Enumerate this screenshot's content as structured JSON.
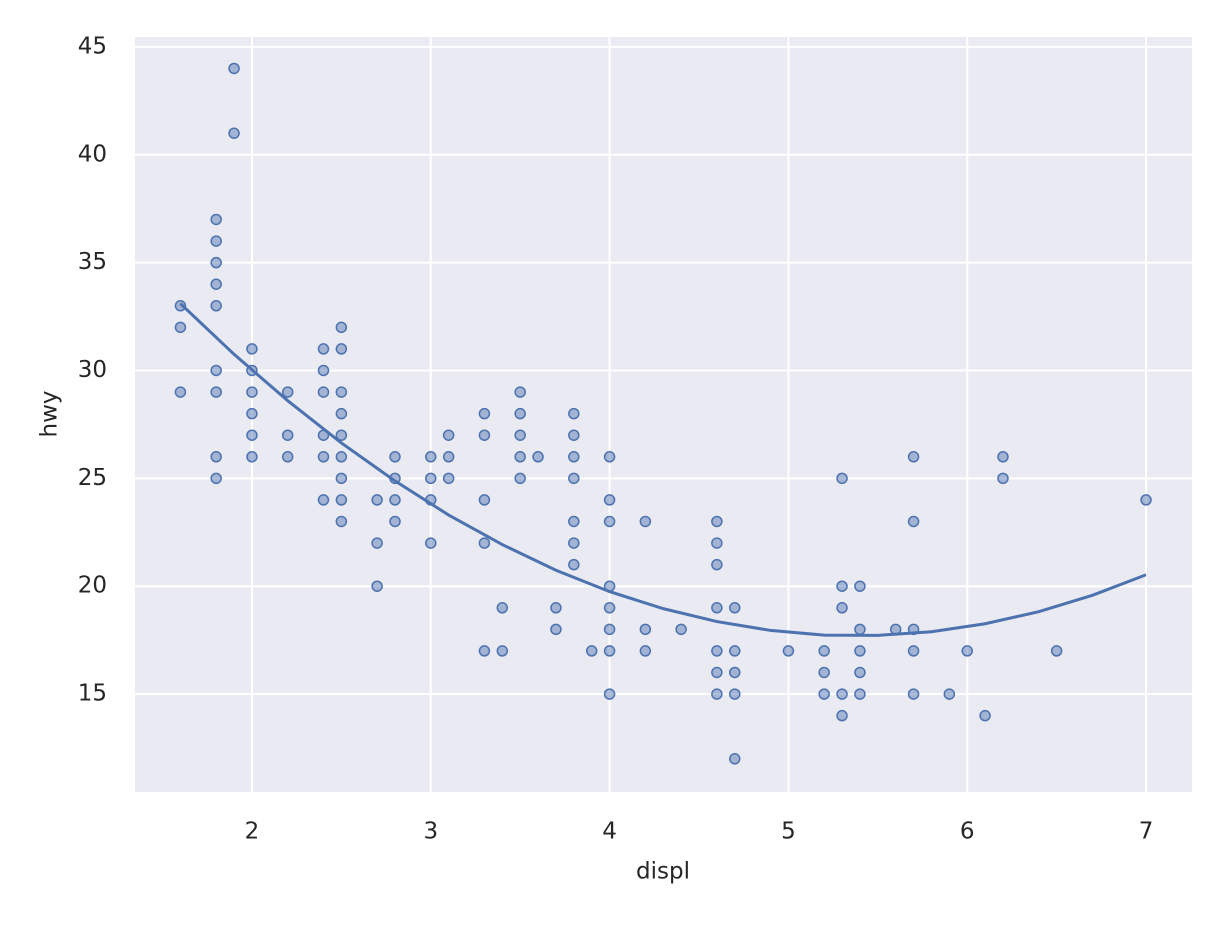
{
  "chart_data": {
    "type": "scatter",
    "xlabel": "displ",
    "ylabel": "hwy",
    "xlim": [
      1.346,
      7.257
    ],
    "ylim": [
      10.46,
      45.46
    ],
    "xticks": [
      2,
      3,
      4,
      5,
      6,
      7
    ],
    "yticks": [
      15,
      20,
      25,
      30,
      35,
      40,
      45
    ],
    "grid": true,
    "background": "#eaeaf2",
    "grid_color": "#ffffff",
    "series": [
      {
        "type": "scatter",
        "color": "#4c72b0",
        "x": [
          1.6,
          1.6,
          1.6,
          1.8,
          1.8,
          1.8,
          1.8,
          1.8,
          1.8,
          1.8,
          1.8,
          1.8,
          1.9,
          1.9,
          2.0,
          2.0,
          2.0,
          2.0,
          2.0,
          2.0,
          2.2,
          2.2,
          2.2,
          2.4,
          2.4,
          2.4,
          2.4,
          2.4,
          2.4,
          2.5,
          2.5,
          2.5,
          2.5,
          2.5,
          2.5,
          2.5,
          2.5,
          2.5,
          2.7,
          2.7,
          2.7,
          2.8,
          2.8,
          2.8,
          2.8,
          3.0,
          3.0,
          3.0,
          3.0,
          3.1,
          3.1,
          3.1,
          3.3,
          3.3,
          3.3,
          3.3,
          3.3,
          3.4,
          3.4,
          3.5,
          3.5,
          3.5,
          3.5,
          3.5,
          3.6,
          3.7,
          3.7,
          3.8,
          3.8,
          3.8,
          3.8,
          3.8,
          3.8,
          3.8,
          3.9,
          4.0,
          4.0,
          4.0,
          4.0,
          4.0,
          4.0,
          4.0,
          4.0,
          4.2,
          4.2,
          4.2,
          4.4,
          4.6,
          4.6,
          4.6,
          4.6,
          4.6,
          4.6,
          4.6,
          4.7,
          4.7,
          4.7,
          4.7,
          4.7,
          5.0,
          5.2,
          5.2,
          5.2,
          5.3,
          5.3,
          5.3,
          5.3,
          5.3,
          5.4,
          5.4,
          5.4,
          5.4,
          5.4,
          5.6,
          5.7,
          5.7,
          5.7,
          5.7,
          5.7,
          5.9,
          6.0,
          6.1,
          6.2,
          6.2,
          6.5,
          7.0
        ],
        "values": [
          33,
          32,
          29,
          37,
          36,
          35,
          34,
          33,
          30,
          29,
          26,
          25,
          44,
          41,
          31,
          30,
          29,
          28,
          27,
          26,
          29,
          27,
          26,
          31,
          30,
          29,
          27,
          26,
          24,
          32,
          31,
          29,
          28,
          27,
          26,
          25,
          24,
          23,
          24,
          22,
          20,
          26,
          25,
          24,
          23,
          26,
          25,
          24,
          22,
          27,
          26,
          25,
          28,
          27,
          24,
          22,
          17,
          19,
          17,
          29,
          28,
          27,
          26,
          25,
          26,
          19,
          18,
          28,
          27,
          26,
          25,
          23,
          22,
          21,
          17,
          26,
          24,
          23,
          20,
          19,
          18,
          17,
          15,
          23,
          18,
          17,
          18,
          23,
          22,
          21,
          19,
          17,
          16,
          15,
          19,
          17,
          16,
          15,
          12,
          17,
          17,
          16,
          15,
          25,
          20,
          19,
          15,
          14,
          20,
          18,
          17,
          16,
          15,
          18,
          26,
          23,
          18,
          17,
          15,
          15,
          17,
          14,
          26,
          25,
          17,
          24
        ]
      },
      {
        "type": "line",
        "color": "#4c72b0",
        "x": [
          1.6,
          1.9,
          2.2,
          2.5,
          2.8,
          3.1,
          3.4,
          3.7,
          4.0,
          4.3,
          4.6,
          4.9,
          5.2,
          5.5,
          5.8,
          6.1,
          6.4,
          6.7,
          7.0
        ],
        "values": [
          33.1,
          30.75,
          28.6,
          26.64,
          24.88,
          23.3,
          21.93,
          20.74,
          19.75,
          18.96,
          18.36,
          17.95,
          17.73,
          17.72,
          17.89,
          18.26,
          18.82,
          19.58,
          20.53
        ]
      }
    ]
  }
}
